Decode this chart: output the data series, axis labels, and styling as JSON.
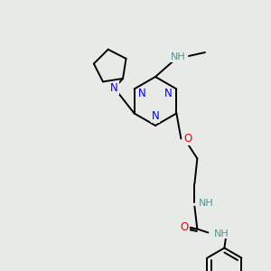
{
  "background_color": "#e8eae8",
  "atom_colors": {
    "N": "#0000ee",
    "O": "#ee0000",
    "H_label": "#4a9999"
  },
  "bond_color": "#000000",
  "bond_lw": 1.4,
  "figsize": [
    3.0,
    3.0
  ],
  "dpi": 100,
  "xlim": [
    0,
    300
  ],
  "ylim": [
    0,
    300
  ],
  "fontsize": 8.5
}
